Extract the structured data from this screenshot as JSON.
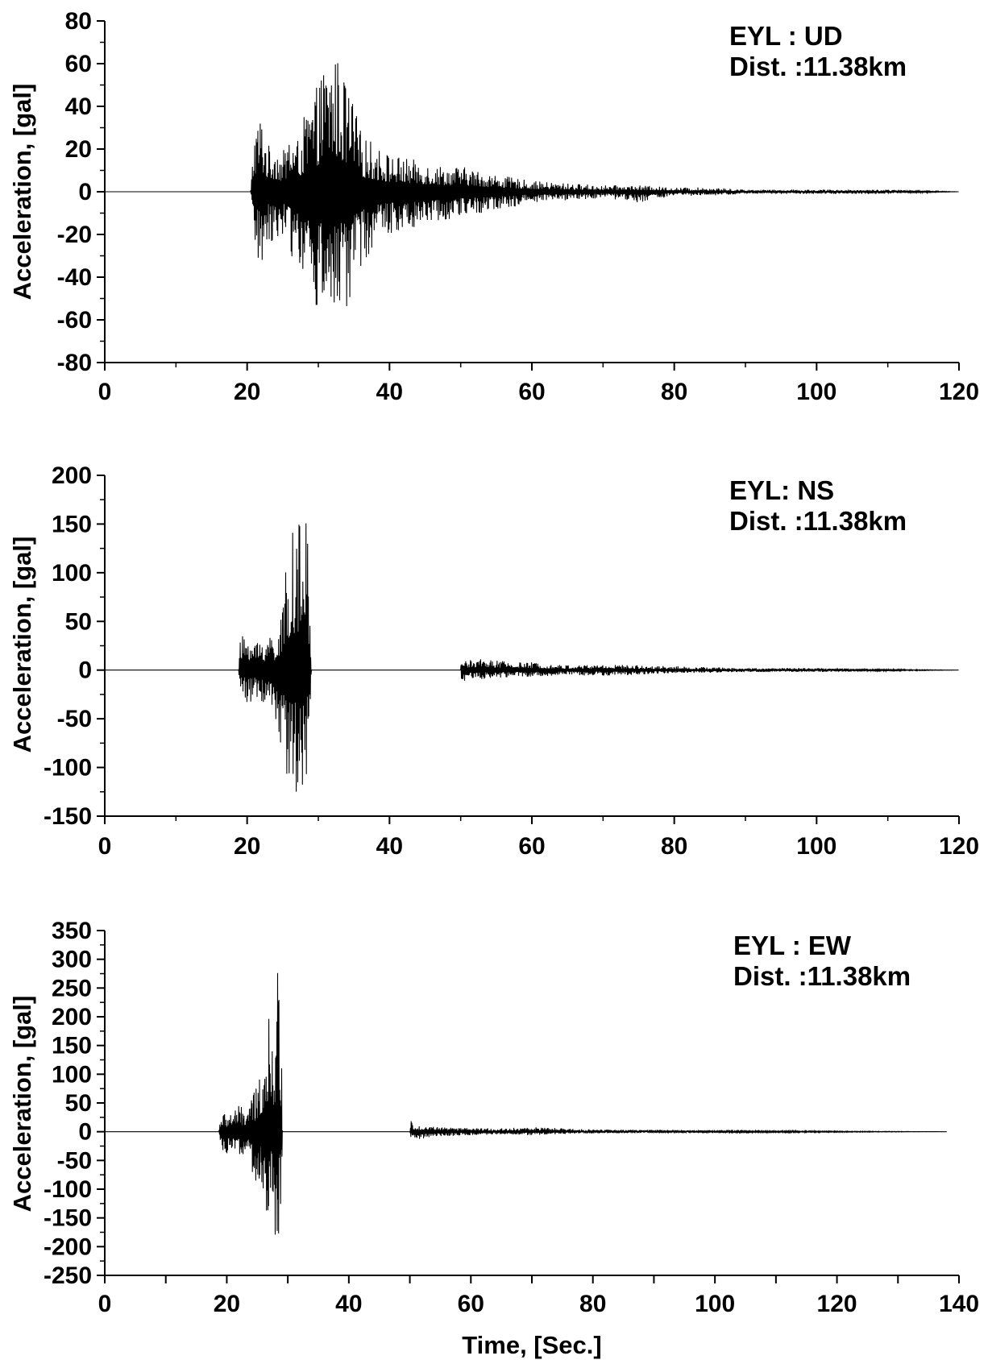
{
  "chart_data": [
    {
      "type": "line",
      "component": "UD",
      "annotation": [
        "EYL : UD",
        "Dist. :11.38km"
      ],
      "ylabel": "Acceleration, [gal]",
      "xlabel": "",
      "xlim": [
        0,
        120
      ],
      "ylim": [
        -80,
        80
      ],
      "xticks": [
        0,
        20,
        40,
        60,
        80,
        100,
        120
      ],
      "xticks_labeled": [
        0,
        20,
        40,
        60,
        80,
        100,
        120
      ],
      "yticks": [
        -80,
        -60,
        -40,
        -20,
        0,
        20,
        40,
        60,
        80
      ],
      "grid": false,
      "series": [
        {
          "color": "#000000",
          "x": [
            0,
            20.5,
            21,
            22,
            23,
            24,
            25,
            26,
            27,
            28,
            29,
            30,
            31,
            32,
            33,
            34,
            35,
            36,
            38,
            40,
            42,
            45,
            48,
            50,
            55,
            60,
            65,
            70,
            75,
            80,
            85,
            90,
            100,
            110,
            120
          ],
          "envelope_pos": [
            0,
            0,
            32,
            38,
            22,
            24,
            18,
            30,
            24,
            35,
            45,
            50,
            64,
            66,
            62,
            50,
            42,
            28,
            22,
            18,
            16,
            14,
            12,
            12,
            8,
            5,
            4,
            3,
            3,
            2,
            2,
            1,
            1,
            1,
            0
          ],
          "envelope_neg": [
            0,
            0,
            -28,
            -38,
            -22,
            -25,
            -20,
            -30,
            -33,
            -40,
            -55,
            -58,
            -56,
            -66,
            -58,
            -61,
            -45,
            -35,
            -25,
            -20,
            -18,
            -15,
            -13,
            -12,
            -9,
            -5,
            -4,
            -3,
            -5,
            -2,
            -2,
            -1,
            -1,
            -1,
            0
          ]
        }
      ]
    },
    {
      "type": "line",
      "component": "NS",
      "annotation": [
        "EYL: NS",
        "Dist. :11.38km"
      ],
      "ylabel": "Acceleration, [gal]",
      "xlabel": "",
      "xlim": [
        0,
        120
      ],
      "ylim": [
        -150,
        200
      ],
      "xticks": [
        0,
        20,
        40,
        60,
        80,
        100,
        120
      ],
      "xticks_labeled": [
        0,
        20,
        40,
        60,
        80,
        100,
        120
      ],
      "yticks": [
        -150,
        -100,
        -50,
        0,
        50,
        100,
        150,
        200
      ],
      "grid": false,
      "series": [
        {
          "color": "#000000",
          "x": [
            0,
            18.8,
            19,
            20,
            21,
            22,
            23,
            24,
            25,
            25.5,
            26,
            26.5,
            27,
            27.5,
            28,
            28.5,
            28.9,
            29,
            50,
            50.1,
            51,
            53,
            55,
            58,
            60,
            65,
            70,
            75,
            80,
            85,
            90,
            100,
            110,
            120
          ],
          "envelope_pos": [
            0,
            0,
            30,
            45,
            30,
            35,
            40,
            40,
            60,
            120,
            135,
            150,
            158,
            145,
            158,
            155,
            60,
            0,
            0,
            12,
            10,
            12,
            10,
            8,
            8,
            5,
            6,
            5,
            4,
            3,
            2,
            2,
            1,
            0
          ],
          "envelope_neg": [
            0,
            0,
            -20,
            -35,
            -30,
            -35,
            -40,
            -75,
            -90,
            -115,
            -130,
            -140,
            -125,
            -110,
            -135,
            -95,
            -70,
            0,
            0,
            -12,
            -10,
            -10,
            -8,
            -7,
            -7,
            -5,
            -6,
            -5,
            -3,
            -3,
            -2,
            -2,
            -1,
            0
          ]
        }
      ]
    },
    {
      "type": "line",
      "component": "EW",
      "annotation": [
        "EYL : EW",
        "Dist. :11.38km"
      ],
      "ylabel": "Acceleration, [gal]",
      "xlabel": "Time, [Sec.]",
      "xlim": [
        0,
        140
      ],
      "ylim": [
        -250,
        350
      ],
      "xticks": [
        0,
        10,
        20,
        30,
        40,
        50,
        60,
        70,
        80,
        90,
        100,
        110,
        120,
        130,
        140
      ],
      "xticks_labeled": [
        0,
        20,
        40,
        60,
        80,
        100,
        120,
        140
      ],
      "yticks": [
        -250,
        -200,
        -150,
        -100,
        -50,
        0,
        50,
        100,
        150,
        200,
        250,
        300,
        350
      ],
      "grid": false,
      "series": [
        {
          "color": "#000000",
          "x": [
            0,
            18.7,
            19,
            20,
            21,
            22,
            23,
            24,
            25,
            25.5,
            26,
            26.5,
            27,
            27.5,
            28,
            28.5,
            29,
            29.1,
            50,
            50.1,
            51,
            53,
            55,
            60,
            65,
            70,
            75,
            80,
            90,
            100,
            120,
            138
          ],
          "envelope_pos": [
            0,
            0,
            35,
            30,
            40,
            45,
            40,
            60,
            80,
            110,
            150,
            190,
            200,
            175,
            205,
            315,
            130,
            0,
            0,
            20,
            12,
            10,
            8,
            6,
            6,
            8,
            6,
            4,
            3,
            2,
            1,
            0
          ],
          "envelope_neg": [
            0,
            0,
            -30,
            -45,
            -40,
            -40,
            -45,
            -55,
            -140,
            -100,
            -160,
            -200,
            -140,
            -130,
            -235,
            -185,
            -110,
            0,
            0,
            -10,
            -14,
            -10,
            -8,
            -6,
            -5,
            -6,
            -4,
            -3,
            -2,
            -2,
            -1,
            0
          ]
        }
      ]
    }
  ]
}
